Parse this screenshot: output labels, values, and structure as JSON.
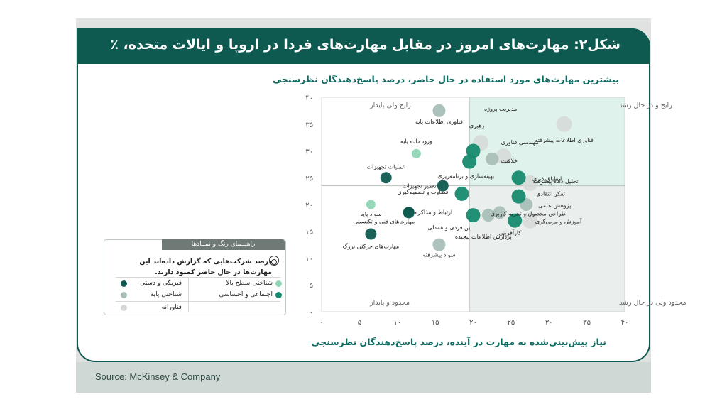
{
  "title": "شکل۲: مهارت‌های امروز در مقابل مهارت‌های فردا در اروپا و ایالات متحده، ٪",
  "subtitle": "بیشترین مهارت‌های مورد استفاده در حال حاضر، درصد پاسخ‌دهندگان نظرسنجی",
  "source": "Source: McKinsey & Company",
  "legend": {
    "header": "راهنــمای رنگ و نمــادها",
    "note": "درصد شرکت‌هایی که گزارش داده‌اند این مهارت‌ها در حال حاضر کمبود دارند.",
    "items": [
      {
        "label": "فیزیکی و دستی",
        "color": "#0f5a50"
      },
      {
        "label": "شناختی سطح بالا",
        "color": "#8fd6b6"
      },
      {
        "label": "شناختی پایه",
        "color": "#a9bfb8"
      },
      {
        "label": "اجتماعی و احساسی",
        "color": "#168a6e"
      },
      {
        "label": "فناورانه",
        "color": "#d6d8d7"
      }
    ]
  },
  "chart_data": {
    "type": "scatter",
    "title": "شکل۲: مهارت‌های امروز در مقابل مهارت‌های فردا در اروپا و ایالات متحده، ٪",
    "ylabel": "بیشترین مهارت‌های مورد استفاده در حال حاضر، درصد پاسخ‌دهندگان نظرسنجی",
    "xlabel": "نیاز پیش‌بینی‌شده به مهارت در آینده، درصد پاسخ‌دهندگان نظرسنجی",
    "xlim": [
      0,
      40
    ],
    "ylim": [
      0,
      40
    ],
    "xticks": [
      "۰",
      "۵",
      "۱۰",
      "۱۵",
      "۲۰",
      "۲۵",
      "۳۰",
      "۳۵",
      "۴۰"
    ],
    "yticks": [
      "۰",
      "۵",
      "۱۰",
      "۱۵",
      "۲۰",
      "۲۵",
      "۳۰",
      "۳۵",
      "۴۰"
    ],
    "dividers": {
      "x": 19.5,
      "y": 23.5
    },
    "quadrants": [
      {
        "label": "رایج ولی پایدار",
        "pos": "top-left"
      },
      {
        "label": "رایج و در حال رشد",
        "pos": "top-right"
      },
      {
        "label": "محدود و پایدار",
        "pos": "bottom-left"
      },
      {
        "label": "محدود ولی در حال رشد",
        "pos": "bottom-right"
      }
    ],
    "points": [
      {
        "label": "فناوری اطلاعات پایه",
        "x": 15.5,
        "y": 37.5,
        "category": "basic",
        "lx": 0,
        "ly": 18
      },
      {
        "label": "فناوری اطلاعات پیشرفته",
        "x": 32,
        "y": 35,
        "category": "tech",
        "lx": 0,
        "ly": 25
      },
      {
        "label": "ورود داده پایه",
        "x": 12.5,
        "y": 29.5,
        "category": "highcog",
        "lx": 0,
        "ly": -15
      },
      {
        "label": "عملیات تجهیزات",
        "x": 8.5,
        "y": 25,
        "category": "physical",
        "lx": 0,
        "ly": -13
      },
      {
        "label": "تعمیر تجهیزات",
        "x": 16,
        "y": 23.5,
        "category": "physical",
        "lx": -33,
        "ly": 3
      },
      {
        "label": "سواد پایه",
        "x": 6.5,
        "y": 20,
        "category": "highcog",
        "lx": 0,
        "ly": 16
      },
      {
        "label": "ارتباط و مذاکره",
        "x": 11.5,
        "y": 18.5,
        "category": "physical",
        "lx": 35,
        "ly": 2
      },
      {
        "label": "مهارت‌های فنی و تکنسینی",
        "x": 11.5,
        "y": 18.5,
        "category": "physical",
        "lx": -35,
        "ly": 15
      },
      {
        "label": "مهارت‌های حرکتی بزرگ",
        "x": 6.5,
        "y": 14.5,
        "category": "physical",
        "lx": 0,
        "ly": 20
      },
      {
        "label": "سواد پیشرفته",
        "x": 15.5,
        "y": 12.5,
        "category": "basic",
        "lx": 0,
        "ly": 17
      },
      {
        "label": "مدیریت پروژه",
        "x": 21,
        "y": 31.5,
        "category": "tech",
        "lx": 28,
        "ly": -45
      },
      {
        "label": "رهبری",
        "x": 20,
        "y": 30,
        "category": "social",
        "lx": 5,
        "ly": -33
      },
      {
        "label": "مهندسی فناوری",
        "x": 24,
        "y": 29,
        "category": "tech",
        "lx": 23,
        "ly": -17
      },
      {
        "label": "بهینه‌سازی و برنامه‌ریزی",
        "x": 19.5,
        "y": 28,
        "category": "social",
        "lx": -5,
        "ly": 23
      },
      {
        "label": "خلاقیت",
        "x": 22.5,
        "y": 28.5,
        "category": "basic",
        "lx": 24,
        "ly": 5
      },
      {
        "label": "تحلیل داده پیشرفته",
        "x": 27.5,
        "y": 24,
        "category": "tech",
        "lx": 36,
        "ly": 0
      },
      {
        "label": "انطباق‌پذیری",
        "x": 26,
        "y": 25,
        "category": "social",
        "lx": 0,
        "ly": 0
      },
      {
        "label": "فضاوت و تصمیم‌گیری",
        "x": 18.5,
        "y": 22,
        "category": "social",
        "lx": -55,
        "ly": 0
      },
      {
        "label": "تفکر انتقادی",
        "x": 26,
        "y": 21.5,
        "category": "social",
        "lx": 45,
        "ly": -1
      },
      {
        "label": "پژوهش علمی",
        "x": 27,
        "y": 20,
        "category": "basic",
        "lx": 0,
        "ly": 0
      },
      {
        "label": "بین فردی و همدلی",
        "x": 20,
        "y": 18,
        "category": "social",
        "lx": -33,
        "ly": 20
      },
      {
        "label": "کارآفرینی",
        "x": 25.5,
        "y": 17,
        "category": "social",
        "lx": -7,
        "ly": 20
      },
      {
        "label": "آموزش و مربی‌گری",
        "x": 27.5,
        "y": 17,
        "category": "tech",
        "lx": 0,
        "ly": 0
      },
      {
        "label": "پردازش اطلاعات پیچیده",
        "x": 22,
        "y": 18,
        "category": "basic",
        "lx": -7,
        "ly": 33
      },
      {
        "label": "طراحی محصول و تجربه کاربری",
        "x": 23.5,
        "y": 18.5,
        "category": "basic",
        "lx": 0,
        "ly": 0
      }
    ]
  }
}
